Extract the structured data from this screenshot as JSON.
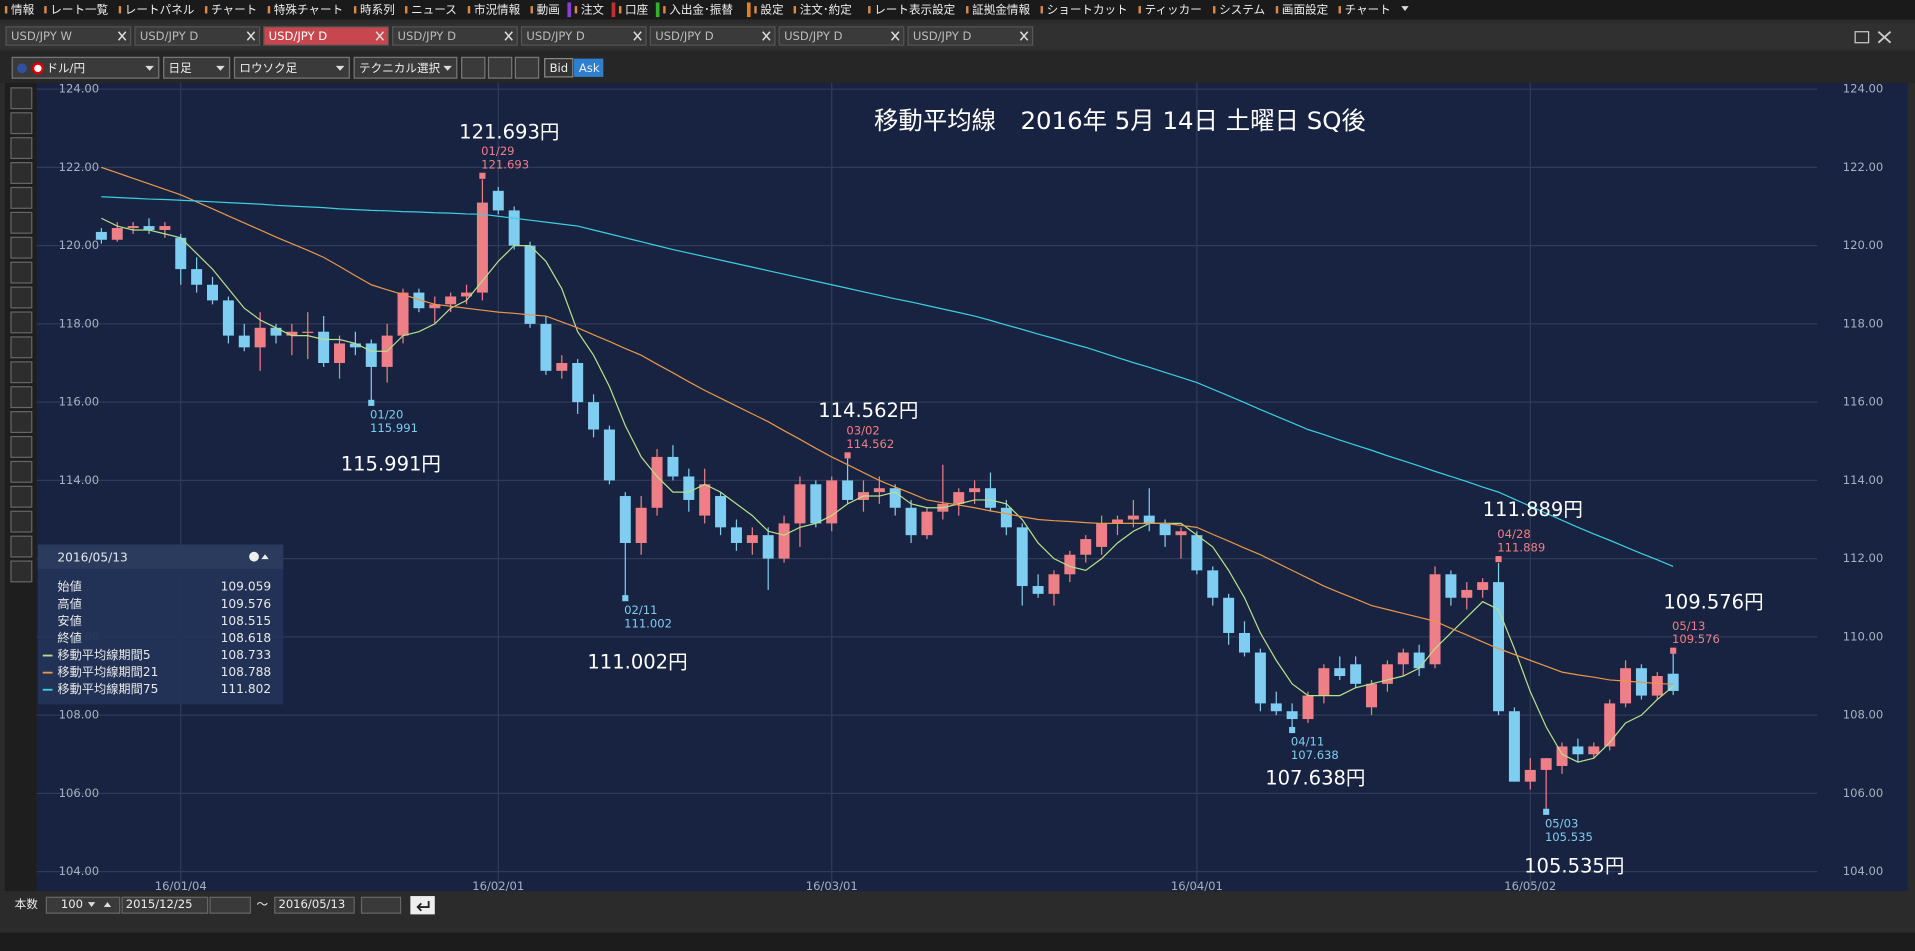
{
  "menu": [
    "情報",
    "レート一覧",
    "レートパネル",
    "チャート",
    "特殊チャート",
    "時系列",
    "ニュース",
    "市況情報",
    "動画",
    "注文",
    "口座",
    "入出金･振替",
    "設定",
    "注文･約定",
    "レート表示設定",
    "証拠金情報",
    "ショートカット",
    "ティッカー",
    "システム",
    "画面設定",
    "チャート"
  ],
  "tabs": [
    "USD/JPY W",
    "USD/JPY D",
    "USD/JPY D",
    "USD/JPY D",
    "USD/JPY D",
    "USD/JPY D",
    "USD/JPY D",
    "USD/JPY D"
  ],
  "toolbar": {
    "pair": "ドル/円",
    "period": "日足",
    "chart_type": "ロウソク足",
    "technical": "テクニカル選択",
    "bid": "Bid",
    "ask": "Ask"
  },
  "chart_data": {
    "type": "candlestick",
    "title": "移動平均線　2016年 5月 14日 土曜日 SQ後",
    "categories": [
      null,
      null,
      null,
      null,
      null,
      "16/01/04",
      null,
      null,
      null,
      null,
      null,
      null,
      null,
      null,
      null,
      null,
      null,
      null,
      null,
      null,
      null,
      null,
      null,
      null,
      null,
      "16/02/01",
      null,
      null,
      null,
      null,
      null,
      null,
      null,
      null,
      null,
      null,
      null,
      null,
      null,
      null,
      null,
      null,
      null,
      null,
      null,
      null,
      "16/03/01",
      null,
      null,
      null,
      null,
      null,
      null,
      null,
      null,
      null,
      null,
      null,
      null,
      null,
      null,
      null,
      null,
      null,
      null,
      null,
      null,
      null,
      null,
      "16/04/01",
      null,
      null,
      null,
      null,
      null,
      null,
      null,
      null,
      null,
      null,
      null,
      null,
      null,
      null,
      null,
      null,
      null,
      null,
      null,
      null,
      "16/05/02",
      null,
      null,
      null,
      null,
      null,
      null,
      null,
      null,
      null
    ],
    "open": [
      120.35,
      120.15,
      120.45,
      120.5,
      120.4,
      120.2,
      119.4,
      119.0,
      118.6,
      117.7,
      117.4,
      117.9,
      117.7,
      117.8,
      117.8,
      117.0,
      117.5,
      117.5,
      116.9,
      117.7,
      118.8,
      118.4,
      118.5,
      118.7,
      118.8,
      121.4,
      120.9,
      120.0,
      118.0,
      116.8,
      117.0,
      116.0,
      115.3,
      113.6,
      112.4,
      113.3,
      114.6,
      114.1,
      113.1,
      113.6,
      112.8,
      112.4,
      112.6,
      112.0,
      112.9,
      113.9,
      112.9,
      114.0,
      113.5,
      113.7,
      113.8,
      113.3,
      112.6,
      113.2,
      113.4,
      113.7,
      113.8,
      113.3,
      112.8,
      111.3,
      111.1,
      111.6,
      112.1,
      112.3,
      112.9,
      113.0,
      113.1,
      112.9,
      112.6,
      112.6,
      111.7,
      111.0,
      110.1,
      109.6,
      108.3,
      108.1,
      107.9,
      108.5,
      109.2,
      109.3,
      108.2,
      108.8,
      109.3,
      109.6,
      109.3,
      111.6,
      111.0,
      111.2,
      111.4,
      108.1,
      106.3,
      106.6,
      106.7,
      107.2,
      107.0,
      107.2,
      108.3,
      109.2,
      108.5,
      109.059
    ],
    "high": [
      120.45,
      120.6,
      120.6,
      120.7,
      120.6,
      120.3,
      119.7,
      119.2,
      118.7,
      118.0,
      118.3,
      118.0,
      118.0,
      118.3,
      118.2,
      117.7,
      117.8,
      117.6,
      118.0,
      118.9,
      118.9,
      118.7,
      118.8,
      119.0,
      121.693,
      121.5,
      121.0,
      120.1,
      118.2,
      117.2,
      117.1,
      116.2,
      115.4,
      113.7,
      113.6,
      114.8,
      114.9,
      114.3,
      114.3,
      113.7,
      113.0,
      112.8,
      112.8,
      113.1,
      114.1,
      114.0,
      114.1,
      114.562,
      114.0,
      114.1,
      113.9,
      113.5,
      113.3,
      114.4,
      113.8,
      114.0,
      114.2,
      113.5,
      112.9,
      111.6,
      111.7,
      112.2,
      112.6,
      113.1,
      113.1,
      113.5,
      113.8,
      113.0,
      112.8,
      112.7,
      111.8,
      111.1,
      110.4,
      109.7,
      108.6,
      108.3,
      108.6,
      109.3,
      109.5,
      109.5,
      108.9,
      109.4,
      109.7,
      109.8,
      111.8,
      111.7,
      111.4,
      111.5,
      111.889,
      108.2,
      106.9,
      106.9,
      107.3,
      107.4,
      107.3,
      108.4,
      109.4,
      109.3,
      109.1,
      109.576
    ],
    "low": [
      120.05,
      120.1,
      120.3,
      120.3,
      120.2,
      119.0,
      118.8,
      118.5,
      117.5,
      117.3,
      116.8,
      117.5,
      117.2,
      117.1,
      116.9,
      116.6,
      117.2,
      115.991,
      116.5,
      117.5,
      118.3,
      118.0,
      118.3,
      118.5,
      118.6,
      120.8,
      119.9,
      117.9,
      116.7,
      116.6,
      115.7,
      115.1,
      113.9,
      111.002,
      112.1,
      113.1,
      114.0,
      113.2,
      112.9,
      112.6,
      112.2,
      112.1,
      111.2,
      111.9,
      112.3,
      112.8,
      112.7,
      113.4,
      113.2,
      113.4,
      113.1,
      112.4,
      112.5,
      113.0,
      113.1,
      113.4,
      113.2,
      112.6,
      110.8,
      111.0,
      110.8,
      111.4,
      111.9,
      112.1,
      112.6,
      112.8,
      112.7,
      112.3,
      112.0,
      111.6,
      110.8,
      109.8,
      109.5,
      108.1,
      108.0,
      107.638,
      107.8,
      108.3,
      108.9,
      108.7,
      108.0,
      108.6,
      109.0,
      109.0,
      109.2,
      110.8,
      110.7,
      111.0,
      108.0,
      106.3,
      106.1,
      105.535,
      106.5,
      106.8,
      106.9,
      107.1,
      108.2,
      108.4,
      108.4,
      108.515
    ],
    "close": [
      120.15,
      120.45,
      120.5,
      120.4,
      120.5,
      119.4,
      119.0,
      118.6,
      117.7,
      117.4,
      117.9,
      117.7,
      117.8,
      117.8,
      117.0,
      117.5,
      117.4,
      116.9,
      117.7,
      118.8,
      118.4,
      118.5,
      118.7,
      118.8,
      121.1,
      120.9,
      120.0,
      118.0,
      116.8,
      117.0,
      116.0,
      115.3,
      114.0,
      112.4,
      113.3,
      114.6,
      114.1,
      113.5,
      113.9,
      112.8,
      112.4,
      112.6,
      112.0,
      112.9,
      113.9,
      112.9,
      114.0,
      113.5,
      113.7,
      113.8,
      113.3,
      112.6,
      113.2,
      113.4,
      113.7,
      113.8,
      113.3,
      112.8,
      111.3,
      111.1,
      111.6,
      112.1,
      112.5,
      112.9,
      113.0,
      113.1,
      112.9,
      112.6,
      112.7,
      111.7,
      111.0,
      110.1,
      109.6,
      108.3,
      108.1,
      107.9,
      108.5,
      109.2,
      109.0,
      108.8,
      108.8,
      109.3,
      109.6,
      109.2,
      111.6,
      111.0,
      111.2,
      111.4,
      108.1,
      106.3,
      106.6,
      106.9,
      107.2,
      107.0,
      107.2,
      108.3,
      109.2,
      108.5,
      109.0,
      108.618
    ],
    "up_color": "#ef7f86",
    "down_color": "#7fcdf0",
    "series": [
      {
        "name": "移動平均線期間5",
        "color": "#b6e08a",
        "values": [
          120.7,
          120.5,
          120.4,
          120.4,
          120.3,
          120.2,
          119.8,
          119.4,
          118.9,
          118.4,
          118.1,
          117.9,
          117.7,
          117.7,
          117.6,
          117.6,
          117.5,
          117.3,
          117.3,
          117.7,
          117.8,
          118.0,
          118.4,
          118.6,
          119.1,
          119.6,
          120.0,
          120.0,
          119.6,
          118.9,
          117.8,
          117.2,
          116.4,
          115.4,
          114.6,
          114.1,
          113.7,
          113.7,
          113.9,
          113.7,
          113.4,
          113.1,
          112.7,
          112.6,
          112.8,
          112.9,
          113.1,
          113.4,
          113.6,
          113.6,
          113.7,
          113.4,
          113.3,
          113.3,
          113.4,
          113.5,
          113.5,
          113.4,
          113.0,
          112.4,
          112.0,
          111.8,
          111.7,
          112.0,
          112.4,
          112.7,
          112.9,
          112.9,
          112.9,
          112.6,
          112.3,
          111.7,
          111.0,
          110.1,
          109.4,
          108.8,
          108.5,
          108.5,
          108.5,
          108.7,
          108.8,
          108.9,
          109.0,
          109.2,
          109.7,
          110.1,
          110.5,
          110.9,
          110.7,
          109.7,
          108.6,
          107.7,
          107.0,
          106.8,
          106.9,
          107.3,
          107.8,
          108.0,
          108.4,
          108.733
        ]
      },
      {
        "name": "移動平均線期間21",
        "color": "#e8964a",
        "values": [
          122.0,
          121.86,
          121.72,
          121.58,
          121.44,
          121.3,
          121.12,
          120.94,
          120.76,
          120.58,
          120.4,
          120.22,
          120.05,
          119.88,
          119.7,
          119.47,
          119.23,
          119.0,
          118.87,
          118.75,
          118.62,
          118.5,
          118.45,
          118.4,
          118.35,
          118.3,
          118.27,
          118.23,
          118.2,
          118.05,
          117.9,
          117.72,
          117.55,
          117.37,
          117.2,
          116.97,
          116.75,
          116.52,
          116.3,
          116.1,
          115.9,
          115.7,
          115.5,
          115.27,
          115.05,
          114.82,
          114.6,
          114.4,
          114.2,
          114.0,
          113.83,
          113.67,
          113.5,
          113.43,
          113.37,
          113.3,
          113.22,
          113.15,
          113.07,
          113.0,
          112.97,
          112.95,
          112.92,
          112.9,
          112.9,
          112.9,
          112.9,
          112.9,
          112.85,
          112.8,
          112.62,
          112.45,
          112.27,
          112.1,
          111.9,
          111.7,
          111.5,
          111.3,
          111.13,
          110.97,
          110.8,
          110.7,
          110.6,
          110.5,
          110.4,
          110.22,
          110.05,
          109.87,
          109.7,
          109.55,
          109.4,
          109.25,
          109.1,
          109.03,
          108.97,
          108.9,
          108.87,
          108.84,
          108.81,
          108.788
        ]
      },
      {
        "name": "移動平均線期間75",
        "color": "#3ccfe0",
        "values": [
          121.25,
          121.23,
          121.21,
          121.19,
          121.18,
          121.16,
          121.14,
          121.12,
          121.1,
          121.08,
          121.06,
          121.03,
          121.01,
          120.99,
          120.97,
          120.94,
          120.92,
          120.9,
          120.89,
          120.87,
          120.86,
          120.84,
          120.83,
          120.81,
          120.8,
          120.75,
          120.7,
          120.65,
          120.6,
          120.55,
          120.5,
          120.4,
          120.3,
          120.2,
          120.1,
          120.0,
          119.9,
          119.81,
          119.72,
          119.63,
          119.54,
          119.45,
          119.36,
          119.27,
          119.18,
          119.09,
          119.0,
          118.91,
          118.82,
          118.73,
          118.64,
          118.56,
          118.47,
          118.38,
          118.29,
          118.2,
          118.09,
          117.97,
          117.86,
          117.74,
          117.63,
          117.51,
          117.4,
          117.27,
          117.14,
          117.01,
          116.89,
          116.76,
          116.63,
          116.5,
          116.33,
          116.16,
          115.99,
          115.81,
          115.64,
          115.47,
          115.3,
          115.17,
          115.03,
          114.9,
          114.77,
          114.63,
          114.5,
          114.37,
          114.23,
          114.1,
          113.97,
          113.83,
          113.7,
          113.52,
          113.34,
          113.16,
          112.98,
          112.8,
          112.63,
          112.47,
          112.3,
          112.13,
          111.97,
          111.802
        ]
      }
    ],
    "ylim": [
      104,
      124
    ],
    "yticks": [
      {
        "value": 104,
        "label": "104.00"
      },
      {
        "value": 106,
        "label": "106.00"
      },
      {
        "value": 108,
        "label": "108.00"
      },
      {
        "value": 110,
        "label": "110.00"
      },
      {
        "value": 112,
        "label": "112.00"
      },
      {
        "value": 114,
        "label": "114.00"
      },
      {
        "value": 116,
        "label": "116.00"
      },
      {
        "value": 118,
        "label": "118.00"
      },
      {
        "value": 120,
        "label": "120.00"
      },
      {
        "value": 122,
        "label": "122.00"
      },
      {
        "value": 124,
        "label": "124.00"
      }
    ],
    "grid": true,
    "annotations": [
      {
        "date": "01/29",
        "price": "121.693",
        "label": "121.693円",
        "kind": "high"
      },
      {
        "date": "01/20",
        "price": "115.991",
        "label": "115.991円",
        "kind": "low"
      },
      {
        "date": "02/11",
        "price": "111.002",
        "label": "111.002円",
        "kind": "low"
      },
      {
        "date": "03/02",
        "price": "114.562",
        "label": "114.562円",
        "kind": "high"
      },
      {
        "date": "04/11",
        "price": "107.638",
        "label": "107.638円",
        "kind": "low"
      },
      {
        "date": "04/28",
        "price": "111.889",
        "label": "111.889円",
        "kind": "high"
      },
      {
        "date": "05/03",
        "price": "105.535",
        "label": "105.535円",
        "kind": "low"
      },
      {
        "date": "05/13",
        "price": "109.576",
        "label": "109.576円",
        "kind": "high"
      }
    ]
  },
  "info_panel": {
    "date": "2016/05/13",
    "rows": [
      {
        "label": "始値",
        "value": "109.059"
      },
      {
        "label": "高値",
        "value": "109.576"
      },
      {
        "label": "安値",
        "value": "108.515"
      },
      {
        "label": "終値",
        "value": "108.618"
      },
      {
        "label": "移動平均線期間5",
        "value": "108.733"
      },
      {
        "label": "移動平均線期間21",
        "value": "108.788"
      },
      {
        "label": "移動平均線期間75",
        "value": "111.802"
      }
    ]
  },
  "footer": {
    "count_label": "本数",
    "count": "100",
    "from": "2015/12/25",
    "tilde": "〜",
    "to": "2016/05/13"
  }
}
